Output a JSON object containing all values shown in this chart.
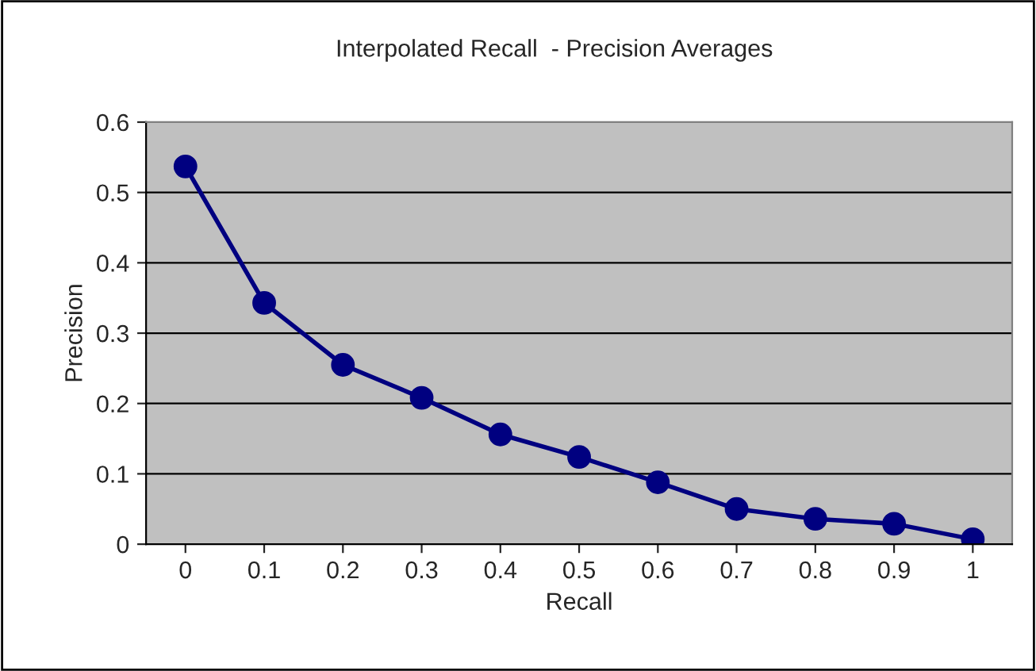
{
  "chart_data": {
    "type": "line",
    "title": "Interpolated Recall  - Precision Averages",
    "xlabel": "Recall",
    "ylabel": "Precision",
    "categories": [
      "0",
      "0.1",
      "0.2",
      "0.3",
      "0.4",
      "0.5",
      "0.6",
      "0.7",
      "0.8",
      "0.9",
      "1"
    ],
    "series": [
      {
        "color": "#000080",
        "values": [
          0.537,
          0.343,
          0.255,
          0.208,
          0.156,
          0.124,
          0.088,
          0.05,
          0.036,
          0.029,
          0.007
        ]
      }
    ],
    "ylim": [
      0,
      0.6
    ],
    "yticks": [
      0,
      0.1,
      0.2,
      0.3,
      0.4,
      0.5,
      0.6
    ],
    "grid": "y",
    "marker": "circle",
    "line_style": "solid"
  }
}
